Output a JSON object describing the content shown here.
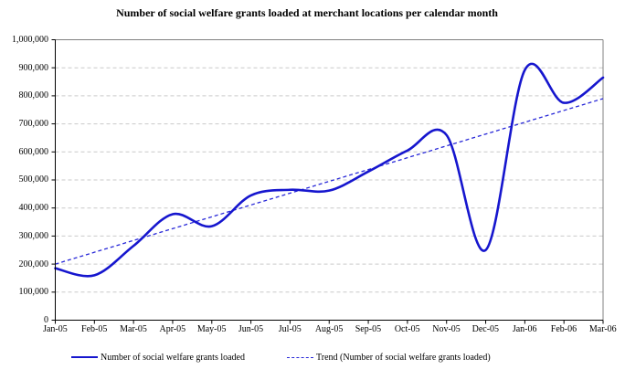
{
  "title": "Number of social welfare grants loaded at merchant locations per calendar month",
  "chart_data": {
    "type": "line",
    "categories": [
      "Jan-05",
      "Feb-05",
      "Mar-05",
      "Apr-05",
      "May-05",
      "Jun-05",
      "Jul-05",
      "Aug-05",
      "Sep-05",
      "Oct-05",
      "Nov-05",
      "Dec-05",
      "Jan-06",
      "Feb-06",
      "Mar-06"
    ],
    "series": [
      {
        "name": "Number of social welfare grants loaded",
        "style": "solid-smooth",
        "values": [
          185000,
          160000,
          265000,
          378000,
          335000,
          445000,
          465000,
          462000,
          530000,
          605000,
          660000,
          250000,
          892000,
          775000,
          865000
        ]
      },
      {
        "name": "Trend (Number of social welfare grants loaded)",
        "style": "dashed-linear-trend",
        "start_value": 200000,
        "end_value": 790000
      }
    ],
    "ylabel": "",
    "xlabel": "",
    "ylim": [
      0,
      1000000
    ],
    "ytick_step": 100000,
    "y_tick_labels": [
      "1,000,000",
      "900,000",
      "800,000",
      "700,000",
      "600,000",
      "500,000",
      "400,000",
      "300,000",
      "200,000",
      "100,000",
      "0"
    ],
    "grid": "horizontal dashed gridlines on",
    "legend_position": "bottom"
  },
  "colors": {
    "series_line": "#1616ce",
    "trend_line": "#2828d8",
    "gridline": "#c9c9c9",
    "plot_border": "#808080",
    "axis": "#000000",
    "text": "#000000",
    "background": "#ffffff"
  }
}
